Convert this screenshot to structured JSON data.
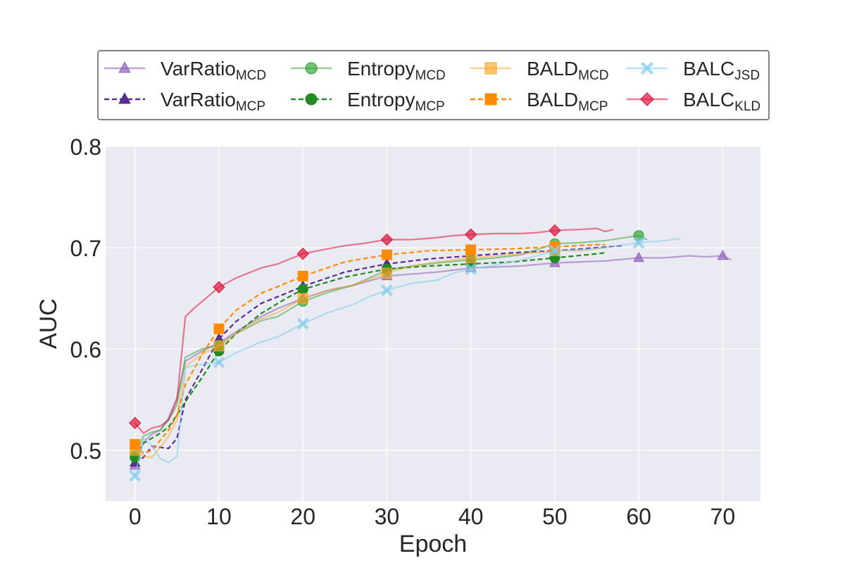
{
  "chart_data": {
    "type": "line",
    "title": "",
    "xlabel": "Epoch",
    "ylabel": "AUC",
    "xlim": [
      -3.5,
      74.5
    ],
    "ylim": [
      0.45,
      0.8
    ],
    "xticks": [
      0,
      10,
      20,
      30,
      40,
      50,
      60,
      70
    ],
    "yticks": [
      0.5,
      0.6,
      0.7,
      0.8
    ],
    "xtick_labels": [
      "0",
      "10",
      "20",
      "30",
      "40",
      "50",
      "60",
      "70"
    ],
    "ytick_labels": [
      "0.5",
      "0.6",
      "0.7",
      "0.8"
    ],
    "grid": true,
    "legend_position": "top",
    "series": [
      {
        "name": "VarRatio",
        "name_sub": "MCD",
        "color": "#9467bd",
        "marker": "triangle",
        "dash": "solid",
        "opacity": 0.6,
        "x": [
          0,
          1,
          2,
          3,
          4,
          5,
          6,
          8,
          10,
          12,
          15,
          17,
          20,
          23,
          26,
          30,
          33,
          36,
          40,
          43,
          46,
          50,
          53,
          56,
          60,
          63,
          66,
          68,
          70,
          71
        ],
        "y": [
          0.485,
          0.508,
          0.516,
          0.52,
          0.532,
          0.552,
          0.588,
          0.598,
          0.606,
          0.617,
          0.632,
          0.64,
          0.65,
          0.658,
          0.663,
          0.672,
          0.674,
          0.676,
          0.68,
          0.681,
          0.682,
          0.685,
          0.686,
          0.687,
          0.69,
          0.69,
          0.692,
          0.691,
          0.692,
          0.688
        ],
        "marker_indices": [
          0,
          8,
          12,
          15,
          18,
          21,
          24,
          28
        ]
      },
      {
        "name": "VarRatio",
        "name_sub": "MCP",
        "color": "#5b2c91",
        "marker": "triangle",
        "dash": "dashed",
        "opacity": 1,
        "x": [
          0,
          1,
          2,
          3,
          4,
          5,
          6,
          8,
          10,
          12,
          15,
          18,
          20,
          25,
          30,
          35,
          40,
          45,
          50,
          55,
          58
        ],
        "y": [
          0.488,
          0.493,
          0.504,
          0.503,
          0.502,
          0.512,
          0.55,
          0.58,
          0.61,
          0.627,
          0.645,
          0.655,
          0.662,
          0.676,
          0.684,
          0.689,
          0.692,
          0.695,
          0.697,
          0.7,
          0.702
        ],
        "marker_indices": [
          0,
          8,
          12,
          14,
          16,
          18
        ]
      },
      {
        "name": "Entropy",
        "name_sub": "MCD",
        "color": "#2ca02c",
        "marker": "circle",
        "dash": "solid",
        "opacity": 0.5,
        "x": [
          0,
          1,
          2,
          3,
          4,
          5,
          6,
          8,
          10,
          12,
          15,
          17,
          20,
          23,
          26,
          30,
          33,
          36,
          40,
          43,
          46,
          50,
          53,
          56,
          60,
          61
        ],
        "y": [
          0.495,
          0.514,
          0.518,
          0.52,
          0.53,
          0.545,
          0.592,
          0.6,
          0.604,
          0.615,
          0.628,
          0.632,
          0.647,
          0.656,
          0.663,
          0.678,
          0.682,
          0.685,
          0.688,
          0.69,
          0.693,
          0.704,
          0.705,
          0.707,
          0.712,
          0.708
        ],
        "marker_indices": [
          0,
          8,
          12,
          15,
          18,
          21,
          24
        ]
      },
      {
        "name": "Entropy",
        "name_sub": "MCP",
        "color": "#228b22",
        "marker": "circle",
        "dash": "dashed",
        "opacity": 1,
        "x": [
          0,
          1,
          2,
          3,
          4,
          5,
          6,
          8,
          10,
          12,
          15,
          18,
          20,
          25,
          30,
          35,
          40,
          45,
          50,
          55,
          56
        ],
        "y": [
          0.493,
          0.507,
          0.512,
          0.517,
          0.523,
          0.535,
          0.548,
          0.572,
          0.598,
          0.615,
          0.635,
          0.65,
          0.659,
          0.671,
          0.679,
          0.682,
          0.684,
          0.686,
          0.69,
          0.694,
          0.695
        ],
        "marker_indices": [
          0,
          8,
          12,
          14,
          16,
          18
        ]
      },
      {
        "name": "BALD",
        "name_sub": "MCD",
        "color": "#f5a623",
        "marker": "square",
        "dash": "solid",
        "opacity": 0.5,
        "x": [
          0,
          1,
          2,
          3,
          4,
          5,
          6,
          8,
          10,
          12,
          15,
          17,
          20,
          23,
          26,
          30,
          33,
          36,
          40,
          43,
          46,
          50,
          53,
          56
        ],
        "y": [
          0.5,
          0.494,
          0.493,
          0.503,
          0.514,
          0.53,
          0.583,
          0.595,
          0.603,
          0.615,
          0.63,
          0.636,
          0.65,
          0.658,
          0.663,
          0.675,
          0.682,
          0.686,
          0.69,
          0.692,
          0.694,
          0.697,
          0.697,
          0.7
        ],
        "marker_indices": [
          0,
          8,
          12,
          15,
          18,
          21
        ]
      },
      {
        "name": "BALD",
        "name_sub": "MCP",
        "color": "#ff8c00",
        "marker": "square",
        "dash": "dashed",
        "opacity": 1,
        "x": [
          0,
          1,
          2,
          3,
          4,
          5,
          6,
          8,
          10,
          12,
          15,
          18,
          20,
          25,
          30,
          35,
          40,
          45,
          50,
          55,
          56
        ],
        "y": [
          0.506,
          0.497,
          0.5,
          0.51,
          0.52,
          0.535,
          0.565,
          0.595,
          0.62,
          0.638,
          0.655,
          0.665,
          0.672,
          0.686,
          0.693,
          0.697,
          0.698,
          0.699,
          0.701,
          0.703,
          0.703
        ],
        "marker_indices": [
          0,
          8,
          12,
          14,
          16,
          18
        ]
      },
      {
        "name": "BALC",
        "name_sub": "JSD",
        "color": "#87ceeb",
        "marker": "cross",
        "dash": "solid",
        "opacity": 0.6,
        "x": [
          0,
          1,
          2,
          3,
          4,
          5,
          6,
          8,
          10,
          12,
          15,
          17,
          20,
          23,
          26,
          28,
          30,
          33,
          36,
          38,
          40,
          43,
          46,
          50,
          53,
          56,
          60,
          63,
          65
        ],
        "y": [
          0.475,
          0.512,
          0.505,
          0.492,
          0.488,
          0.494,
          0.582,
          0.585,
          0.587,
          0.596,
          0.607,
          0.612,
          0.625,
          0.636,
          0.644,
          0.652,
          0.658,
          0.665,
          0.668,
          0.675,
          0.679,
          0.683,
          0.688,
          0.697,
          0.698,
          0.7,
          0.705,
          0.707,
          0.709
        ],
        "marker_indices": [
          0,
          8,
          12,
          16,
          20,
          23,
          26
        ]
      },
      {
        "name": "BALC",
        "name_sub": "KLD",
        "color": "#dc143c",
        "marker": "diamond",
        "dash": "solid",
        "opacity": 0.55,
        "x": [
          0,
          1,
          2,
          3,
          4,
          5,
          6,
          7,
          8,
          10,
          12,
          15,
          17,
          20,
          23,
          25,
          27,
          30,
          33,
          36,
          38,
          40,
          43,
          46,
          48,
          50,
          53,
          55,
          56,
          57
        ],
        "y": [
          0.527,
          0.517,
          0.522,
          0.524,
          0.53,
          0.55,
          0.632,
          0.64,
          0.647,
          0.661,
          0.67,
          0.68,
          0.684,
          0.694,
          0.699,
          0.702,
          0.704,
          0.708,
          0.708,
          0.71,
          0.712,
          0.713,
          0.714,
          0.714,
          0.715,
          0.717,
          0.718,
          0.719,
          0.716,
          0.718
        ],
        "marker_indices": [
          0,
          9,
          13,
          17,
          21,
          25
        ]
      }
    ]
  }
}
